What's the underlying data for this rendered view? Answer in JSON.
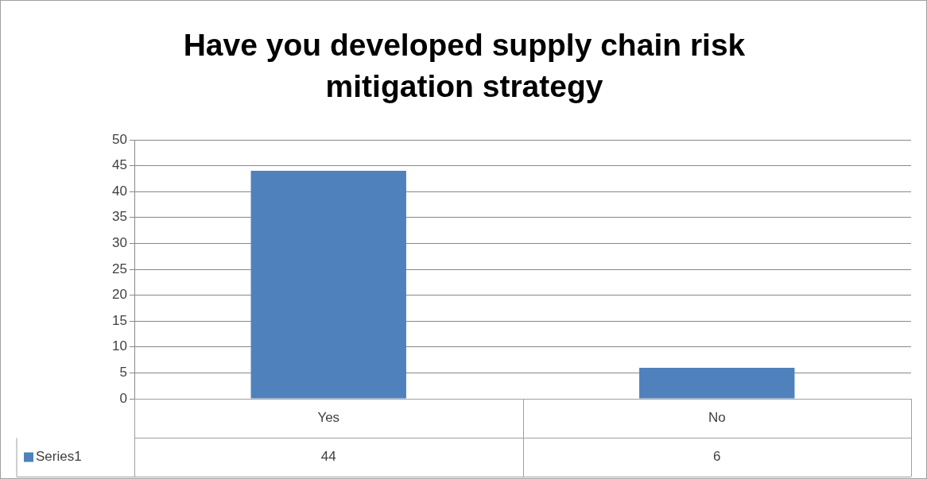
{
  "chart_data": {
    "type": "bar",
    "title": "Have you developed supply chain risk mitigation strategy",
    "categories": [
      "Yes",
      "No"
    ],
    "series": [
      {
        "name": "Series1",
        "color": "#4f81bd",
        "values": [
          44,
          6
        ]
      }
    ],
    "ylim": [
      0,
      50
    ],
    "yticks": [
      0,
      5,
      10,
      15,
      20,
      25,
      30,
      35,
      40,
      45,
      50
    ],
    "grid": "y",
    "legend": "bottom",
    "data_labels": true
  }
}
